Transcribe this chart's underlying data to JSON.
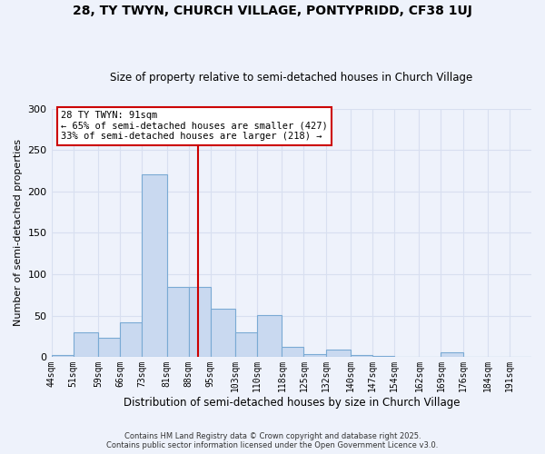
{
  "title": "28, TY TWYN, CHURCH VILLAGE, PONTYPRIDD, CF38 1UJ",
  "subtitle": "Size of property relative to semi-detached houses in Church Village",
  "xlabel": "Distribution of semi-detached houses by size in Church Village",
  "ylabel": "Number of semi-detached properties",
  "bin_labels": [
    "44sqm",
    "51sqm",
    "59sqm",
    "66sqm",
    "73sqm",
    "81sqm",
    "88sqm",
    "95sqm",
    "103sqm",
    "110sqm",
    "118sqm",
    "125sqm",
    "132sqm",
    "140sqm",
    "147sqm",
    "154sqm",
    "162sqm",
    "169sqm",
    "176sqm",
    "184sqm",
    "191sqm"
  ],
  "bar_values": [
    3,
    30,
    23,
    42,
    221,
    85,
    85,
    58,
    30,
    51,
    13,
    4,
    9,
    3,
    2,
    1,
    1,
    6,
    1,
    1,
    0
  ],
  "bar_color": "#c9d9f0",
  "bar_edge_color": "#7aaad4",
  "vline_x": 91,
  "vline_color": "#cc0000",
  "ylim": [
    0,
    300
  ],
  "yticks": [
    0,
    50,
    100,
    150,
    200,
    250,
    300
  ],
  "annotation_title": "28 TY TWYN: 91sqm",
  "annotation_line1": "← 65% of semi-detached houses are smaller (427)",
  "annotation_line2": "33% of semi-detached houses are larger (218) →",
  "annotation_box_color": "#cc0000",
  "footer1": "Contains HM Land Registry data © Crown copyright and database right 2025.",
  "footer2": "Contains public sector information licensed under the Open Government Licence v3.0.",
  "bg_color": "#eef2fb",
  "grid_color": "#d8dff0",
  "bin_edges": [
    44,
    51,
    59,
    66,
    73,
    81,
    88,
    95,
    103,
    110,
    118,
    125,
    132,
    140,
    147,
    154,
    162,
    169,
    176,
    184,
    191,
    198
  ]
}
